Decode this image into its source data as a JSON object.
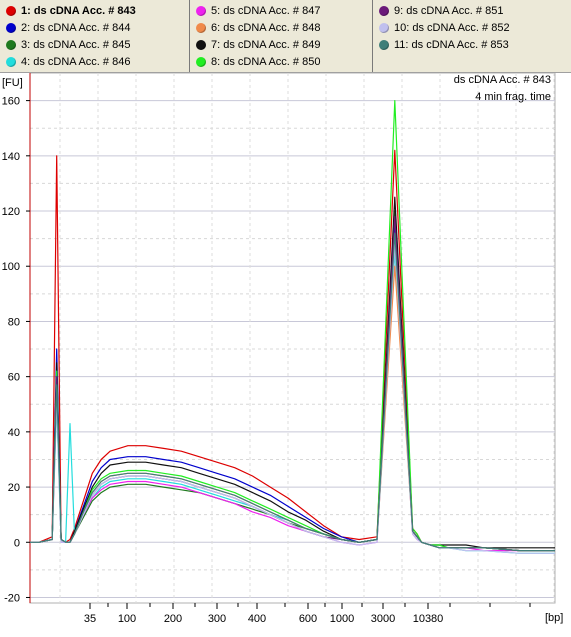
{
  "legend": [
    {
      "label": "1: ds cDNA Acc. # 843",
      "color": "#dd0000",
      "bold": true
    },
    {
      "label": "2: ds cDNA Acc. # 844",
      "color": "#0000cc"
    },
    {
      "label": "3: ds cDNA Acc. # 845",
      "color": "#1e7a1e"
    },
    {
      "label": "4: ds cDNA Acc. # 846",
      "color": "#22dddd"
    },
    {
      "label": "5: ds cDNA Acc. # 847",
      "color": "#ee22ee"
    },
    {
      "label": "6: ds cDNA Acc. # 848",
      "color": "#f08a4a"
    },
    {
      "label": "7: ds cDNA Acc. # 849",
      "color": "#111111"
    },
    {
      "label": "8: ds cDNA Acc. # 850",
      "color": "#22ee22"
    },
    {
      "label": "9: ds cDNA Acc. # 851",
      "color": "#6b1a7a"
    },
    {
      "label": "10: ds cDNA Acc. # 852",
      "color": "#c0c0ee"
    },
    {
      "label": "11: ds cDNA Acc. # 853",
      "color": "#3f7f78"
    }
  ],
  "chart_data": {
    "type": "line",
    "ylabel": "[FU]",
    "xlabel": "[bp]",
    "annotation": [
      "ds cDNA Acc. # 843",
      "4 min frag. time"
    ],
    "ylim": [
      -22,
      170
    ],
    "yticks": [
      -20,
      0,
      20,
      40,
      60,
      80,
      100,
      120,
      140,
      160
    ],
    "xticks": [
      "35",
      "100",
      "200",
      "300",
      "400",
      "600",
      "1000",
      "3000",
      "10380"
    ],
    "xlim": [
      10,
      600
    ],
    "x_values": [
      10,
      20,
      35,
      40,
      45,
      50,
      55,
      60,
      70,
      80,
      90,
      100,
      120,
      140,
      160,
      180,
      200,
      220,
      240,
      260,
      280,
      300,
      320,
      340,
      360,
      380,
      400,
      420,
      440,
      445,
      450,
      460,
      470,
      480,
      500,
      520,
      560,
      600
    ],
    "series": [
      {
        "name": "1: ds cDNA Acc. # 843",
        "values": [
          0,
          0,
          2,
          140,
          1,
          0,
          1,
          5,
          15,
          25,
          30,
          33,
          35,
          35,
          34,
          33,
          31,
          29,
          27,
          24,
          20,
          16,
          11,
          6,
          2,
          1,
          2,
          142,
          5,
          3,
          0,
          -1,
          -2,
          -2,
          -2,
          -2,
          -3,
          -3
        ]
      },
      {
        "name": "2: ds cDNA Acc. # 844",
        "values": [
          0,
          0,
          1,
          70,
          1,
          0,
          0,
          4,
          13,
          22,
          27,
          30,
          31,
          31,
          30,
          29,
          27,
          25,
          23,
          20,
          17,
          13,
          9,
          5,
          2,
          0,
          1,
          115,
          4,
          2,
          0,
          -1,
          -2,
          -2,
          -2,
          -2,
          -3,
          -3
        ]
      },
      {
        "name": "3: ds cDNA Acc. # 845",
        "values": [
          0,
          0,
          1,
          60,
          1,
          0,
          0,
          3,
          9,
          15,
          18,
          20,
          21,
          21,
          20,
          19,
          18,
          16,
          14,
          12,
          10,
          7,
          5,
          3,
          1,
          0,
          1,
          120,
          4,
          2,
          0,
          -1,
          -1,
          -2,
          -2,
          -2,
          -3,
          -3
        ]
      },
      {
        "name": "4: ds cDNA Acc. # 846",
        "values": [
          0,
          0,
          1,
          50,
          0,
          0,
          43,
          3,
          10,
          16,
          20,
          22,
          23,
          23,
          22,
          21,
          19,
          17,
          15,
          13,
          10,
          8,
          5,
          3,
          1,
          0,
          1,
          105,
          4,
          2,
          0,
          -1,
          -2,
          -2,
          -3,
          -3,
          -4,
          -4
        ]
      },
      {
        "name": "5: ds cDNA Acc. # 847",
        "values": [
          0,
          0,
          1,
          55,
          0,
          0,
          0,
          3,
          10,
          16,
          19,
          21,
          22,
          22,
          21,
          20,
          18,
          16,
          14,
          11,
          9,
          6,
          4,
          2,
          0,
          -1,
          0,
          110,
          3,
          1,
          0,
          -1,
          -2,
          -2,
          -2,
          -3,
          -3,
          -3
        ]
      },
      {
        "name": "6: ds cDNA Acc. # 848",
        "values": [
          0,
          0,
          1,
          58,
          1,
          0,
          0,
          3,
          11,
          18,
          22,
          24,
          25,
          25,
          24,
          23,
          21,
          19,
          17,
          14,
          11,
          8,
          5,
          3,
          1,
          0,
          1,
          100,
          4,
          2,
          0,
          -1,
          -2,
          -2,
          -2,
          -2,
          -3,
          -3
        ]
      },
      {
        "name": "7: ds cDNA Acc. # 849",
        "values": [
          0,
          0,
          1,
          65,
          1,
          0,
          0,
          4,
          12,
          20,
          25,
          28,
          29,
          29,
          28,
          27,
          25,
          23,
          21,
          18,
          15,
          11,
          8,
          4,
          1,
          0,
          1,
          125,
          4,
          2,
          0,
          -1,
          -1,
          -1,
          -1,
          -2,
          -2,
          -2
        ]
      },
      {
        "name": "8: ds cDNA Acc. # 850",
        "values": [
          0,
          0,
          1,
          62,
          1,
          0,
          0,
          3,
          11,
          19,
          23,
          25,
          26,
          26,
          25,
          24,
          22,
          20,
          18,
          15,
          12,
          9,
          6,
          3,
          1,
          0,
          1,
          160,
          5,
          3,
          0,
          -1,
          -1,
          -2,
          -2,
          -2,
          -3,
          -3
        ]
      },
      {
        "name": "9: ds cDNA Acc. # 851",
        "values": [
          0,
          0,
          1,
          60,
          1,
          0,
          0,
          3,
          10,
          17,
          21,
          23,
          24,
          24,
          23,
          22,
          20,
          18,
          16,
          13,
          10,
          7,
          4,
          2,
          1,
          0,
          1,
          118,
          4,
          2,
          0,
          -1,
          -2,
          -2,
          -2,
          -2,
          -3,
          -3
        ]
      },
      {
        "name": "10: ds cDNA Acc. # 852",
        "values": [
          0,
          0,
          1,
          52,
          0,
          0,
          0,
          3,
          10,
          17,
          21,
          23,
          24,
          24,
          23,
          22,
          20,
          18,
          16,
          13,
          10,
          7,
          4,
          2,
          0,
          -1,
          0,
          108,
          3,
          1,
          0,
          -1,
          -2,
          -2,
          -3,
          -3,
          -4,
          -4
        ]
      },
      {
        "name": "11: ds cDNA Acc. # 853",
        "values": [
          0,
          0,
          1,
          57,
          1,
          0,
          0,
          3,
          11,
          18,
          22,
          24,
          25,
          25,
          24,
          23,
          21,
          19,
          17,
          14,
          11,
          8,
          5,
          3,
          1,
          0,
          1,
          112,
          4,
          2,
          0,
          -1,
          -2,
          -2,
          -2,
          -2,
          -3,
          -3
        ]
      }
    ]
  }
}
